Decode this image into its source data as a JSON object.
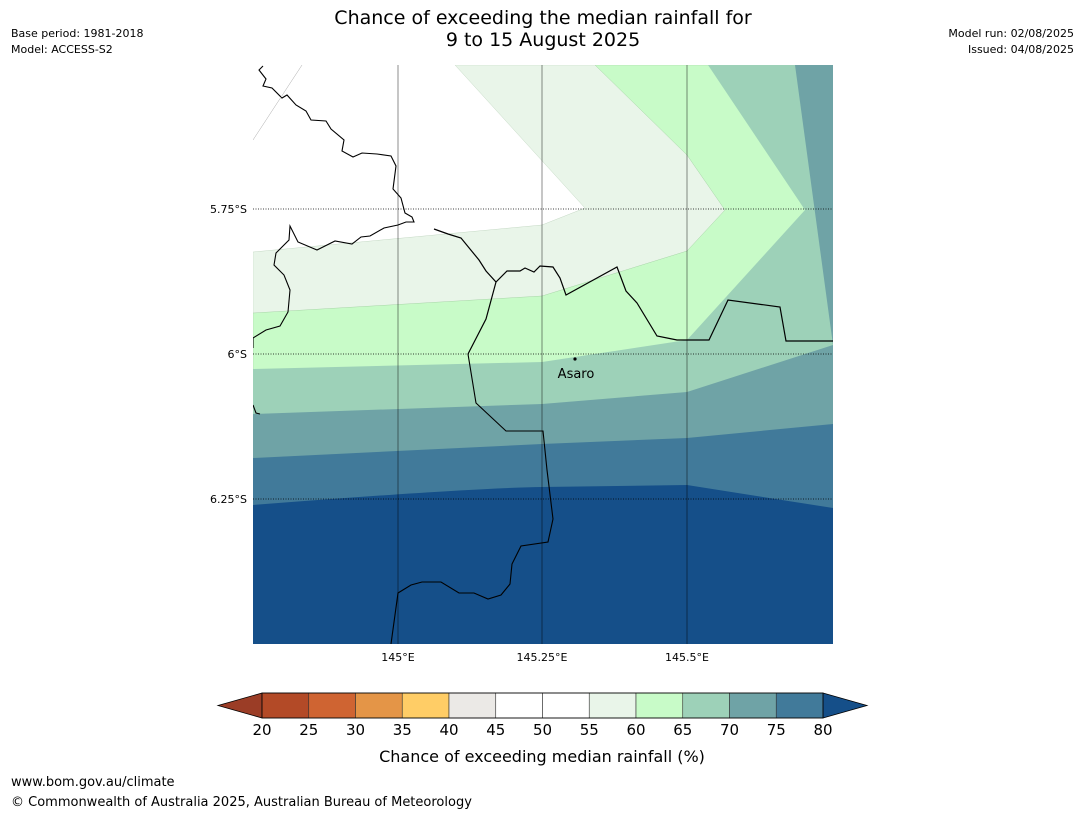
{
  "header": {
    "title_line1": "Chance of exceeding the median rainfall for",
    "title_line2": "9 to 15 August 2025",
    "base_period": "Base period: 1981-2018",
    "model": "Model: ACCESS-S2",
    "model_run": "Model run: 02/08/2025",
    "issued": "Issued: 04/08/2025"
  },
  "map": {
    "lat_labels": [
      "5.75°S",
      "6°S",
      "6.25°S"
    ],
    "lon_labels": [
      "145°E",
      "145.25°E",
      "145.5°E"
    ],
    "place": "Asaro",
    "bands": [
      {
        "range": "55–60",
        "color": "#e9f5e9"
      },
      {
        "range": "60–65",
        "color": "#c8fbc8"
      },
      {
        "range": "65–70",
        "color": "#9dd1b8"
      },
      {
        "range": "70–75",
        "color": "#6fa3a6"
      },
      {
        "range": "75–80",
        "color": "#417a9a"
      },
      {
        "range": ">80",
        "color": "#154f89"
      }
    ]
  },
  "colorbar": {
    "ticks": [
      "20",
      "25",
      "30",
      "35",
      "40",
      "45",
      "50",
      "55",
      "60",
      "65",
      "70",
      "75",
      "80"
    ],
    "colors": [
      "#b34a27",
      "#cf6432",
      "#e49547",
      "#ffcd66",
      "#ebe9e6",
      "#ffffff",
      "#ffffff",
      "#e9f5e9",
      "#c8fbc8",
      "#9dd1b8",
      "#6fa3a6",
      "#417a9a"
    ],
    "under_color": "#9b3d26",
    "over_color": "#154f89",
    "label": "Chance of exceeding median rainfall (%)"
  },
  "footer": {
    "url": "www.bom.gov.au/climate",
    "copyright": "© Commonwealth of Australia 2025, Australian Bureau of Meteorology"
  }
}
